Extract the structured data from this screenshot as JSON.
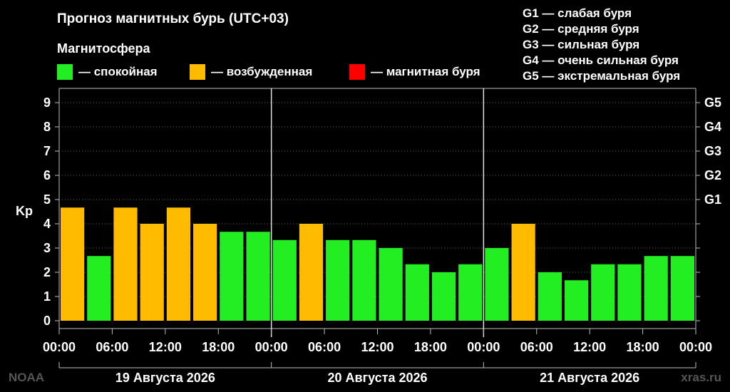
{
  "title": "Прогноз магнитных бурь (UTC+03)",
  "magnetosphere_label": "Магнитосфера",
  "legend": [
    {
      "label": "— спокойная",
      "color": "#22ee22"
    },
    {
      "label": "— возбужденная",
      "color": "#ffbb00"
    },
    {
      "label": "— магнитная буря",
      "color": "#ff0000"
    }
  ],
  "g_legend": [
    "G1 — слабая буря",
    "G2 — средняя буря",
    "G3 — сильная буря",
    "G4 — очень сильная буря",
    "G5 — экстремальная буря"
  ],
  "footer": {
    "left": "NOAA",
    "right": "xras.ru"
  },
  "chart_data": {
    "type": "bar",
    "ylabel": "Kp",
    "ylim": [
      0,
      9
    ],
    "y_ticks": [
      "0",
      "1",
      "2",
      "3",
      "4",
      "5",
      "6",
      "7",
      "8",
      "9"
    ],
    "right_ticks": [
      {
        "label": "G1",
        "kp": 5
      },
      {
        "label": "G2",
        "kp": 6
      },
      {
        "label": "G3",
        "kp": 7
      },
      {
        "label": "G4",
        "kp": 8
      },
      {
        "label": "G5",
        "kp": 9
      }
    ],
    "x_tick_labels": [
      "00:00",
      "06:00",
      "12:00",
      "18:00",
      "00:00",
      "06:00",
      "12:00",
      "18:00",
      "00:00",
      "06:00",
      "12:00",
      "18:00",
      "00:00"
    ],
    "days": [
      "19 Августа 2026",
      "20 Августа 2026",
      "21 Августа 2026"
    ],
    "values": [
      4.67,
      2.67,
      4.67,
      4.0,
      4.67,
      4.0,
      3.67,
      3.67,
      3.33,
      4.0,
      3.33,
      3.33,
      3.0,
      2.33,
      2.0,
      2.33,
      3.0,
      4.0,
      2.0,
      1.67,
      2.33,
      2.33,
      2.67,
      2.67
    ],
    "colors": {
      "quiet": "#22ee22",
      "active": "#ffbb00",
      "storm": "#ff0000"
    },
    "grid": true
  }
}
